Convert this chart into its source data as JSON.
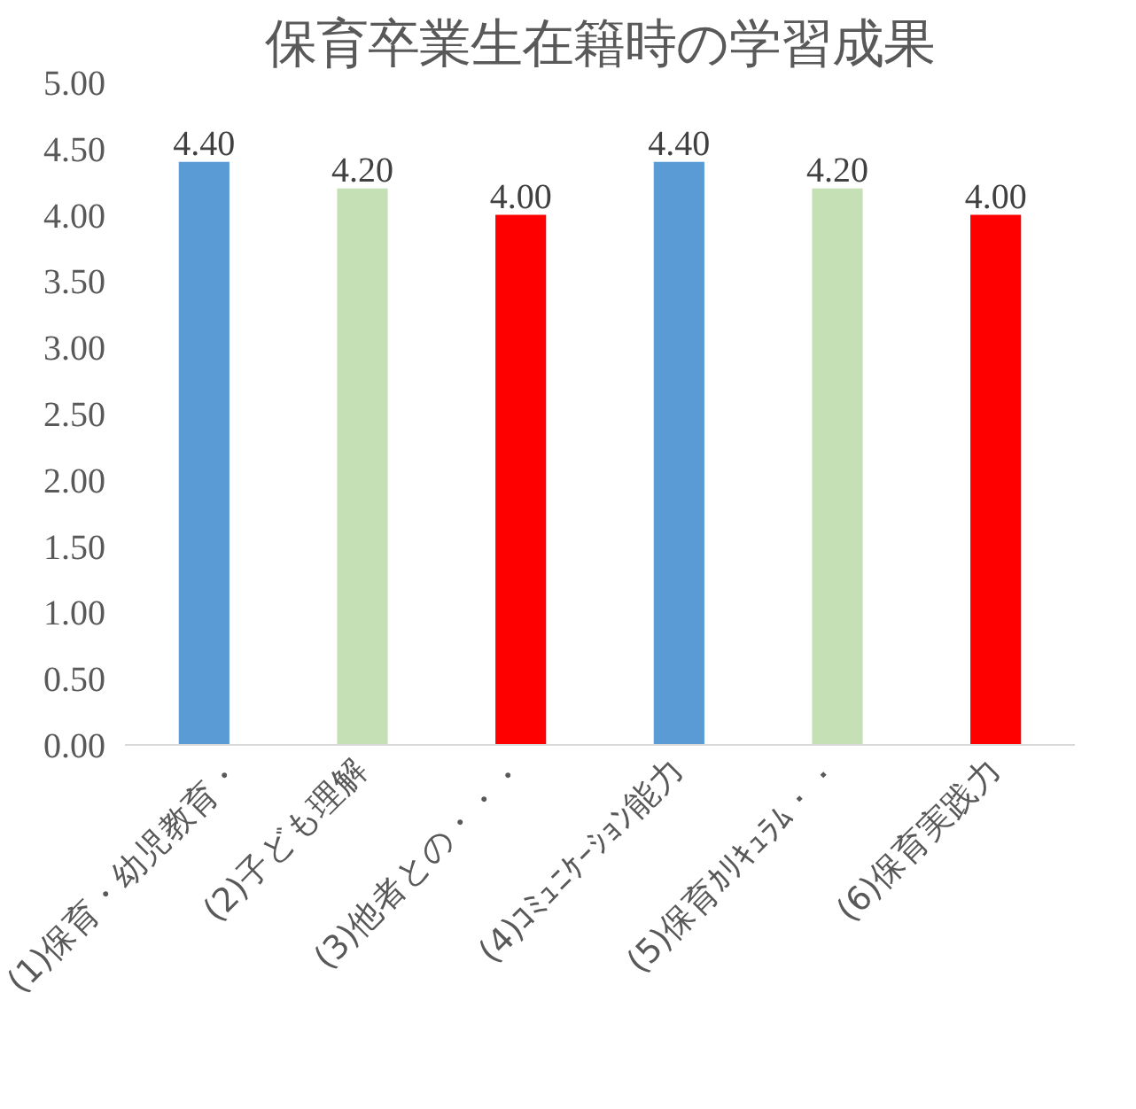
{
  "chart_data": {
    "type": "bar",
    "title": "保育卒業生在籍時の学習成果",
    "categories": [
      "(1)保育・幼児教育・",
      "(2)子ども理解",
      "(3)他者との・・・",
      "(4)ｺﾐｭﾆｹｰｼｮﾝ能力",
      "(5)保育ｶﾘｷｭﾗﾑ・・",
      "(6)保育実践力"
    ],
    "values": [
      4.4,
      4.2,
      4.0,
      4.4,
      4.2,
      4.0
    ],
    "colors": [
      "#5b9bd5",
      "#c5e0b4",
      "#ff0000",
      "#5b9bd5",
      "#c5e0b4",
      "#ff0000"
    ],
    "value_labels": [
      "4.40",
      "4.20",
      "4.00",
      "4.40",
      "4.20",
      "4.00"
    ],
    "ylim": [
      0,
      5
    ],
    "yticks": [
      {
        "value": 0,
        "label": "0.00"
      },
      {
        "value": 0.5,
        "label": "0.50"
      },
      {
        "value": 1,
        "label": "1.00"
      },
      {
        "value": 1.5,
        "label": "1.50"
      },
      {
        "value": 2,
        "label": "2.00"
      },
      {
        "value": 2.5,
        "label": "2.50"
      },
      {
        "value": 3,
        "label": "3.00"
      },
      {
        "value": 3.5,
        "label": "3.50"
      },
      {
        "value": 4,
        "label": "4.00"
      },
      {
        "value": 4.5,
        "label": "4.50"
      },
      {
        "value": 5,
        "label": "5.00"
      }
    ],
    "grid": false
  }
}
